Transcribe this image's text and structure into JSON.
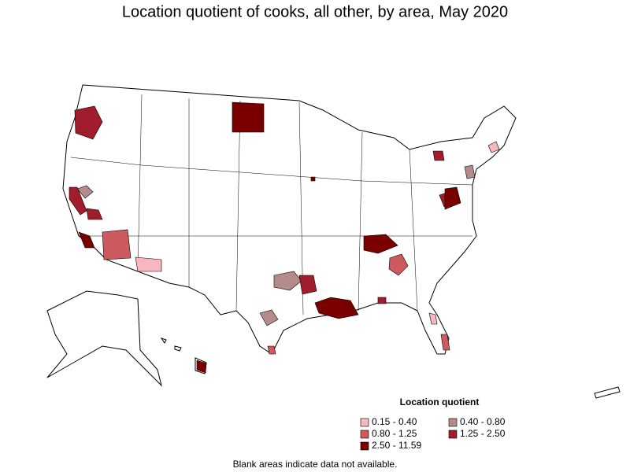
{
  "title": "Location quotient of cooks, all other, by area, May 2020",
  "legend": {
    "title": "Location quotient",
    "items": [
      {
        "label": "0.15 - 0.40",
        "color": "#f7b6c0"
      },
      {
        "label": "0.40 - 0.80",
        "color": "#b48a8a"
      },
      {
        "label": "0.80 - 1.25",
        "color": "#cc5a5e"
      },
      {
        "label": "1.25 - 2.50",
        "color": "#a11c2c"
      },
      {
        "label": "2.50 - 11.59",
        "color": "#7a0000"
      }
    ]
  },
  "note": "Blank areas indicate data not available."
}
